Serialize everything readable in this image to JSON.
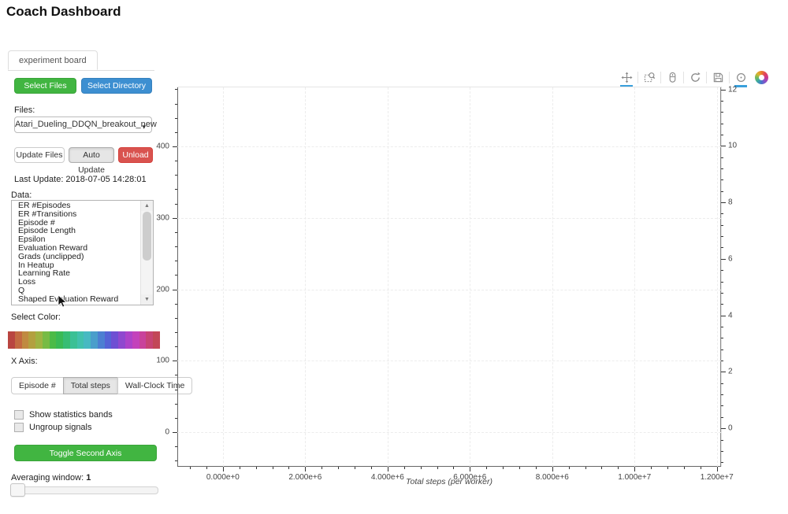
{
  "page": {
    "title": "Coach Dashboard"
  },
  "tabs": {
    "active_label": "experiment board"
  },
  "file_controls": {
    "select_files_label": "Select Files",
    "select_directory_label": "Select Directory",
    "files_label": "Files:",
    "selected_file": "Atari_Dueling_DDQN_breakout_new",
    "update_files_label": "Update Files",
    "auto_update_label": "Auto Update",
    "unload_label": "Unload",
    "last_update": "Last Update: 2018-07-05 14:28:01"
  },
  "data_panel": {
    "label": "Data:",
    "items": [
      "ER #Episodes",
      "ER #Transitions",
      "Episode #",
      "Episode Length",
      "Epsilon",
      "Evaluation Reward",
      "Grads (unclipped)",
      "In Heatup",
      "Learning Rate",
      "Loss",
      "Q",
      "Shaped Evaluation Reward"
    ]
  },
  "color_panel": {
    "label": "Select Color:",
    "palette": [
      "#b94540",
      "#c36a41",
      "#c08a41",
      "#b3a03f",
      "#9fb342",
      "#77bb44",
      "#4cbb47",
      "#3aba55",
      "#37bd74",
      "#3bc095",
      "#41c1ad",
      "#47b9c2",
      "#4a9ecb",
      "#4c7fd2",
      "#5563d6",
      "#6e4fd3",
      "#8f48cf",
      "#ad43c9",
      "#c342bb",
      "#c9429b",
      "#c74474",
      "#c24757"
    ]
  },
  "x_axis_panel": {
    "label": "X Axis:",
    "options": [
      "Episode #",
      "Total steps",
      "Wall-Clock Time"
    ],
    "selected": "Total steps"
  },
  "toggles": {
    "show_stats_label": "Show statistics bands",
    "ungroup_label": "Ungroup signals",
    "toggle_second_axis_label": "Toggle Second Axis"
  },
  "averaging": {
    "label": "Averaging window:",
    "value": "1"
  },
  "toolbar": {
    "tools": [
      {
        "name": "pan-icon",
        "active": true
      },
      {
        "name": "box-zoom-icon",
        "active": false
      },
      {
        "name": "wheel-zoom-icon",
        "active": false
      },
      {
        "name": "reset-icon",
        "active": false
      },
      {
        "name": "save-icon",
        "active": false
      },
      {
        "name": "hover-icon",
        "active": true
      }
    ],
    "logo": "bokeh-logo",
    "accent_color": "#3aa0dc"
  },
  "chart_data": {
    "type": "line",
    "title": "",
    "xlabel": "Total steps (per worker)",
    "ylabel": "",
    "series": [],
    "plot_empty": true,
    "grid": true,
    "x_axis": {
      "range": [
        -1108000,
        12101000
      ],
      "major_ticks": [
        0,
        2000000,
        4000000,
        6000000,
        8000000,
        10000000,
        12000000
      ],
      "tick_labels": [
        "0.000e+0",
        "2.000e+6",
        "4.000e+6",
        "6.000e+6",
        "8.000e+6",
        "1.000e+7",
        "1.200e+7"
      ],
      "minor_step": 400000
    },
    "y_left": {
      "range": [
        -48.5,
        482.7
      ],
      "major_ticks": [
        0,
        100,
        200,
        300,
        400
      ],
      "tick_labels": [
        "0",
        "100",
        "200",
        "300",
        "400"
      ],
      "minor_step": 20
    },
    "y_right": {
      "range": [
        -1.36,
        12.07
      ],
      "major_ticks": [
        0,
        2,
        4,
        6,
        8,
        10,
        12
      ],
      "tick_labels": [
        "0",
        "2",
        "4",
        "6",
        "8",
        "10",
        "12"
      ],
      "minor_step": 0.4
    }
  }
}
